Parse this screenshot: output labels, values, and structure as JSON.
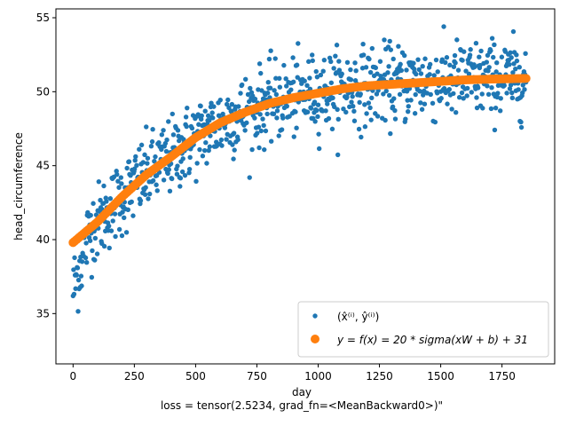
{
  "chart_data": {
    "type": "scatter",
    "title": "",
    "xlabel": "day",
    "ylabel": "head_circumference",
    "caption": "loss = tensor(2.5234, grad_fn=<MeanBackward0>)\"",
    "xlim": [
      -70,
      1965
    ],
    "ylim": [
      31.6,
      55.6
    ],
    "x_ticks": [
      0,
      250,
      500,
      750,
      1000,
      1250,
      1500,
      1750
    ],
    "y_ticks": [
      35,
      40,
      45,
      50,
      55
    ],
    "grid": false,
    "legend_placement": "lower-right",
    "colors": {
      "data": "#1f77b4",
      "fit": "#ff7f0e"
    },
    "series": [
      {
        "name": "(x̂⁽ⁱ⁾, ŷ⁽ⁱ⁾)",
        "kind": "scatter-noisy",
        "color": "#1f77b4",
        "x_range": [
          0,
          1850
        ],
        "count": 900,
        "noise_sd": 1.3,
        "y_min_shown": 32.6,
        "y_max_shown": 54.4
      },
      {
        "name": "y = f(x) = 20 * sigma(xW + b) + 31",
        "kind": "fit-curve",
        "color": "#ff7f0e",
        "x": [
          0,
          100,
          200,
          300,
          400,
          500,
          600,
          700,
          800,
          900,
          1000,
          1100,
          1200,
          1300,
          1400,
          1500,
          1600,
          1700,
          1850
        ],
        "y": [
          39.8,
          41.2,
          42.9,
          44.4,
          45.6,
          46.9,
          47.9,
          48.6,
          49.2,
          49.6,
          49.9,
          50.2,
          50.4,
          50.5,
          50.6,
          50.7,
          50.8,
          50.85,
          50.9
        ]
      }
    ]
  }
}
